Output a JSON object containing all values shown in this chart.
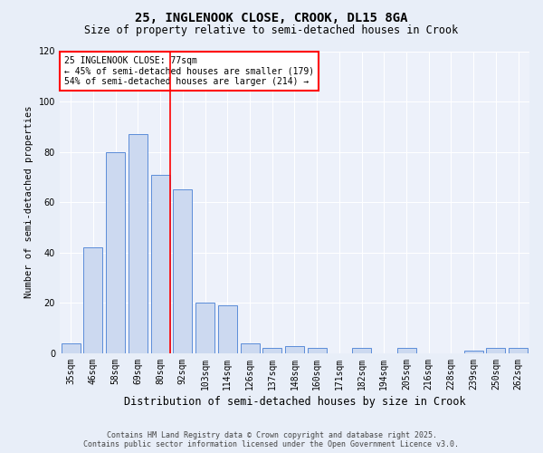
{
  "title1": "25, INGLENOOK CLOSE, CROOK, DL15 8GA",
  "title2": "Size of property relative to semi-detached houses in Crook",
  "xlabel": "Distribution of semi-detached houses by size in Crook",
  "ylabel": "Number of semi-detached properties",
  "categories": [
    "35sqm",
    "46sqm",
    "58sqm",
    "69sqm",
    "80sqm",
    "92sqm",
    "103sqm",
    "114sqm",
    "126sqm",
    "137sqm",
    "148sqm",
    "160sqm",
    "171sqm",
    "182sqm",
    "194sqm",
    "205sqm",
    "216sqm",
    "228sqm",
    "239sqm",
    "250sqm",
    "262sqm"
  ],
  "values": [
    4,
    42,
    80,
    87,
    71,
    65,
    20,
    19,
    4,
    2,
    3,
    2,
    0,
    2,
    0,
    2,
    0,
    0,
    1,
    2,
    2
  ],
  "bar_color": "#ccd9f0",
  "bar_edge_color": "#5b8dd9",
  "ylim": [
    0,
    120
  ],
  "yticks": [
    0,
    20,
    40,
    60,
    80,
    100,
    120
  ],
  "red_line_index": 4,
  "annotation_title": "25 INGLENOOK CLOSE: 77sqm",
  "annotation_line1": "← 45% of semi-detached houses are smaller (179)",
  "annotation_line2": "54% of semi-detached houses are larger (214) →",
  "footer1": "Contains HM Land Registry data © Crown copyright and database right 2025.",
  "footer2": "Contains public sector information licensed under the Open Government Licence v3.0.",
  "bg_color": "#e8eef8",
  "plot_bg_color": "#edf1fa",
  "title1_fontsize": 10,
  "title2_fontsize": 8.5,
  "ylabel_fontsize": 7.5,
  "xlabel_fontsize": 8.5,
  "tick_fontsize": 7,
  "annot_fontsize": 7,
  "footer_fontsize": 6
}
